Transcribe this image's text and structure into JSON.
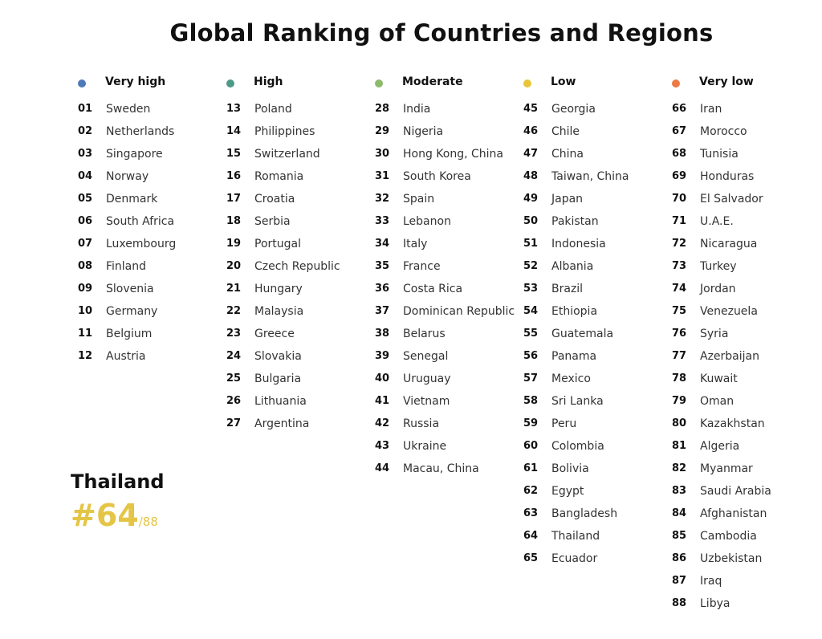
{
  "title": "Global Ranking of Countries and Regions",
  "highlight": {
    "country": "Thailand",
    "rank": "#64",
    "total": "/88",
    "color": "#e4c545"
  },
  "columns": [
    {
      "label": "Very high",
      "color": "#4f79b8",
      "items": [
        {
          "rank": "01",
          "name": "Sweden"
        },
        {
          "rank": "02",
          "name": "Netherlands"
        },
        {
          "rank": "03",
          "name": "Singapore"
        },
        {
          "rank": "04",
          "name": "Norway"
        },
        {
          "rank": "05",
          "name": "Denmark"
        },
        {
          "rank": "06",
          "name": "South Africa"
        },
        {
          "rank": "07",
          "name": "Luxembourg"
        },
        {
          "rank": "08",
          "name": "Finland"
        },
        {
          "rank": "09",
          "name": "Slovenia"
        },
        {
          "rank": "10",
          "name": "Germany"
        },
        {
          "rank": "11",
          "name": "Belgium"
        },
        {
          "rank": "12",
          "name": "Austria"
        }
      ]
    },
    {
      "label": "High",
      "color": "#4e9a8a",
      "items": [
        {
          "rank": "13",
          "name": "Poland"
        },
        {
          "rank": "14",
          "name": "Philippines"
        },
        {
          "rank": "15",
          "name": "Switzerland"
        },
        {
          "rank": "16",
          "name": "Romania"
        },
        {
          "rank": "17",
          "name": "Croatia"
        },
        {
          "rank": "18",
          "name": "Serbia"
        },
        {
          "rank": "19",
          "name": "Portugal"
        },
        {
          "rank": "20",
          "name": "Czech Republic"
        },
        {
          "rank": "21",
          "name": "Hungary"
        },
        {
          "rank": "22",
          "name": "Malaysia"
        },
        {
          "rank": "23",
          "name": "Greece"
        },
        {
          "rank": "24",
          "name": "Slovakia"
        },
        {
          "rank": "25",
          "name": "Bulgaria"
        },
        {
          "rank": "26",
          "name": "Lithuania"
        },
        {
          "rank": "27",
          "name": "Argentina"
        }
      ]
    },
    {
      "label": "Moderate",
      "color": "#8cbb6b",
      "items": [
        {
          "rank": "28",
          "name": "India"
        },
        {
          "rank": "29",
          "name": "Nigeria"
        },
        {
          "rank": "30",
          "name": "Hong Kong, China"
        },
        {
          "rank": "31",
          "name": "South Korea"
        },
        {
          "rank": "32",
          "name": "Spain"
        },
        {
          "rank": "33",
          "name": "Lebanon"
        },
        {
          "rank": "34",
          "name": "Italy"
        },
        {
          "rank": "35",
          "name": "France"
        },
        {
          "rank": "36",
          "name": "Costa Rica"
        },
        {
          "rank": "37",
          "name": "Dominican Republic"
        },
        {
          "rank": "38",
          "name": "Belarus"
        },
        {
          "rank": "39",
          "name": "Senegal"
        },
        {
          "rank": "40",
          "name": "Uruguay"
        },
        {
          "rank": "41",
          "name": "Vietnam"
        },
        {
          "rank": "42",
          "name": "Russia"
        },
        {
          "rank": "43",
          "name": "Ukraine"
        },
        {
          "rank": "44",
          "name": "Macau, China"
        }
      ]
    },
    {
      "label": "Low",
      "color": "#e8c53a",
      "items": [
        {
          "rank": "45",
          "name": "Georgia"
        },
        {
          "rank": "46",
          "name": "Chile"
        },
        {
          "rank": "47",
          "name": "China"
        },
        {
          "rank": "48",
          "name": "Taiwan, China"
        },
        {
          "rank": "49",
          "name": "Japan"
        },
        {
          "rank": "50",
          "name": "Pakistan"
        },
        {
          "rank": "51",
          "name": "Indonesia"
        },
        {
          "rank": "52",
          "name": "Albania"
        },
        {
          "rank": "53",
          "name": "Brazil"
        },
        {
          "rank": "54",
          "name": "Ethiopia"
        },
        {
          "rank": "55",
          "name": "Guatemala"
        },
        {
          "rank": "56",
          "name": "Panama"
        },
        {
          "rank": "57",
          "name": "Mexico"
        },
        {
          "rank": "58",
          "name": "Sri Lanka"
        },
        {
          "rank": "59",
          "name": "Peru"
        },
        {
          "rank": "60",
          "name": "Colombia"
        },
        {
          "rank": "61",
          "name": "Bolivia"
        },
        {
          "rank": "62",
          "name": "Egypt"
        },
        {
          "rank": "63",
          "name": "Bangladesh"
        },
        {
          "rank": "64",
          "name": "Thailand"
        },
        {
          "rank": "65",
          "name": "Ecuador"
        }
      ]
    },
    {
      "label": "Very low",
      "color": "#ec7a45",
      "items": [
        {
          "rank": "66",
          "name": "Iran"
        },
        {
          "rank": "67",
          "name": "Morocco"
        },
        {
          "rank": "68",
          "name": "Tunisia"
        },
        {
          "rank": "69",
          "name": "Honduras"
        },
        {
          "rank": "70",
          "name": "El Salvador"
        },
        {
          "rank": "71",
          "name": "U.A.E."
        },
        {
          "rank": "72",
          "name": "Nicaragua"
        },
        {
          "rank": "73",
          "name": "Turkey"
        },
        {
          "rank": "74",
          "name": "Jordan"
        },
        {
          "rank": "75",
          "name": "Venezuela"
        },
        {
          "rank": "76",
          "name": "Syria"
        },
        {
          "rank": "77",
          "name": "Azerbaijan"
        },
        {
          "rank": "78",
          "name": "Kuwait"
        },
        {
          "rank": "79",
          "name": "Oman"
        },
        {
          "rank": "80",
          "name": "Kazakhstan"
        },
        {
          "rank": "81",
          "name": "Algeria"
        },
        {
          "rank": "82",
          "name": "Myanmar"
        },
        {
          "rank": "83",
          "name": "Saudi Arabia"
        },
        {
          "rank": "84",
          "name": "Afghanistan"
        },
        {
          "rank": "85",
          "name": "Cambodia"
        },
        {
          "rank": "86",
          "name": "Uzbekistan"
        },
        {
          "rank": "87",
          "name": "Iraq"
        },
        {
          "rank": "88",
          "name": "Libya"
        }
      ]
    }
  ]
}
